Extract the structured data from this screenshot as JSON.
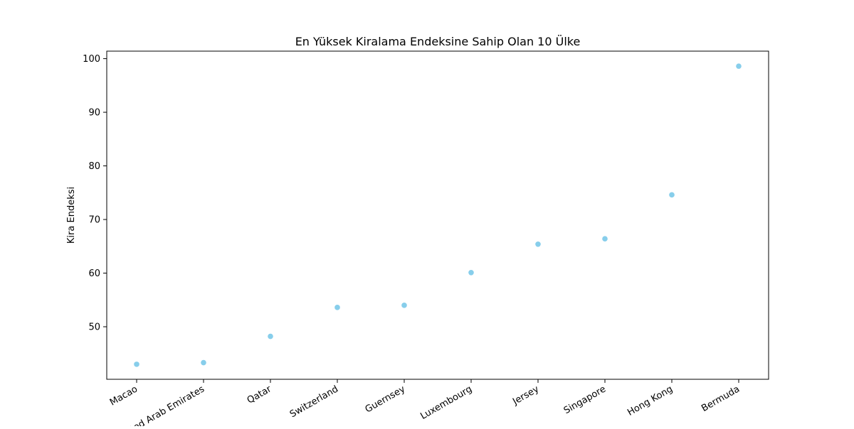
{
  "chart_data": {
    "type": "scatter",
    "title": "En Yüksek Kiralama Endeksine Sahip Olan 10 Ülke",
    "xlabel": "",
    "ylabel": "Kira Endeksi",
    "categories": [
      "Macao",
      "United Arab Emirates",
      "Qatar",
      "Switzerland",
      "Guernsey",
      "Luxembourg",
      "Jersey",
      "Singapore",
      "Hong Kong",
      "Bermuda"
    ],
    "series": [
      {
        "values": [
          43.0,
          43.3,
          48.2,
          53.6,
          54.0,
          60.1,
          65.4,
          66.4,
          74.6,
          98.6
        ],
        "color": "#87ceeb"
      }
    ],
    "ylim": [
      40.2,
      101.4
    ],
    "yticks": [
      50,
      60,
      70,
      80,
      90,
      100
    ],
    "grid": false,
    "legend": "none"
  }
}
